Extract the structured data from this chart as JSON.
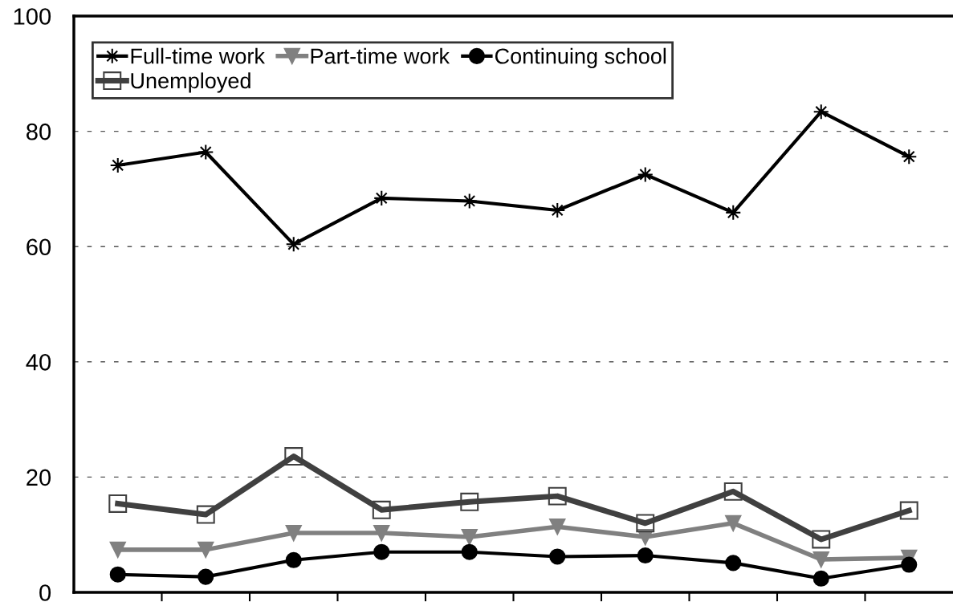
{
  "chart_data": {
    "type": "line",
    "categories": [
      null,
      null,
      null,
      null,
      null,
      null,
      null,
      null,
      null,
      null
    ],
    "series": [
      {
        "name": "Full-time work",
        "color": "#000000",
        "marker": "star",
        "values": [
          74.1,
          76.4,
          60.4,
          68.4,
          67.9,
          66.3,
          72.5,
          65.9,
          83.4,
          75.6
        ]
      },
      {
        "name": "Part-time work",
        "color": "#808080",
        "marker": "triangle",
        "values": [
          7.4,
          7.4,
          10.3,
          10.3,
          9.6,
          11.4,
          9.6,
          12.0,
          5.7,
          6.0
        ]
      },
      {
        "name": "Continuing school",
        "color": "#000000",
        "marker": "circle",
        "values": [
          3.1,
          2.7,
          5.6,
          7.0,
          7.0,
          6.2,
          6.4,
          5.1,
          2.4,
          4.8
        ]
      },
      {
        "name": "Unemployed",
        "color": "#404040",
        "marker": "square",
        "values": [
          15.4,
          13.5,
          23.6,
          14.3,
          15.7,
          16.7,
          12.0,
          17.5,
          9.2,
          14.2
        ]
      }
    ],
    "ylim": [
      0,
      100
    ],
    "yticks": [
      0,
      20,
      40,
      60,
      80,
      100
    ],
    "grid": "y",
    "legend": "top",
    "line_style": "solid"
  }
}
